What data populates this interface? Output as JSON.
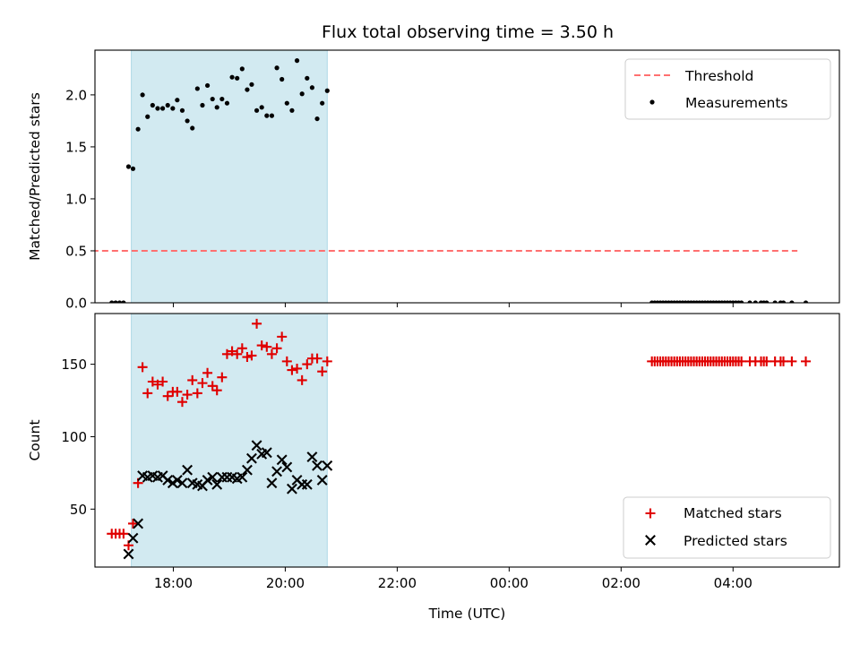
{
  "title": "Flux total observing time = 3.50 h",
  "colors": {
    "threshold": "#ff7070",
    "measurements": "#000000",
    "matched": "#e00000",
    "predicted": "#000000",
    "shade": "#add8e6"
  },
  "chart_data": [
    {
      "type": "scatter",
      "panel": "top",
      "ylabel": "Matched/Predicted stars",
      "xlim": [
        16.6,
        29.9
      ],
      "ylim": [
        0,
        2.43
      ],
      "x_unit": "hours since 00:00 UTC of first day",
      "xticks": [
        18,
        20,
        22,
        24,
        26,
        28
      ],
      "yticks": [
        0.0,
        0.5,
        1.0,
        1.5,
        2.0
      ],
      "ytick_labels": [
        "0.0",
        "0.5",
        "1.0",
        "1.5",
        "2.0"
      ],
      "shaded_span": [
        17.25,
        20.75
      ],
      "legend": {
        "placement": "top-right",
        "entries": [
          "Threshold",
          "Measurements"
        ]
      },
      "threshold": {
        "name": "Threshold",
        "y": 0.5,
        "x": [
          16.55,
          29.15
        ]
      },
      "measurements": {
        "name": "Measurements",
        "x": [
          16.9,
          16.97,
          17.04,
          17.11,
          17.2,
          17.28,
          17.37,
          17.45,
          17.54,
          17.63,
          17.72,
          17.81,
          17.9,
          17.99,
          18.07,
          18.16,
          18.25,
          18.34,
          18.43,
          18.52,
          18.61,
          18.7,
          18.78,
          18.87,
          18.96,
          19.05,
          19.14,
          19.23,
          19.32,
          19.4,
          19.49,
          19.58,
          19.67,
          19.76,
          19.85,
          19.94,
          20.03,
          20.12,
          20.21,
          20.3,
          20.39,
          20.48,
          20.57,
          20.66,
          20.75,
          26.55,
          26.6,
          26.65,
          26.7,
          26.75,
          26.8,
          26.85,
          26.9,
          26.95,
          27.0,
          27.05,
          27.1,
          27.15,
          27.2,
          27.25,
          27.3,
          27.35,
          27.4,
          27.45,
          27.5,
          27.55,
          27.6,
          27.65,
          27.7,
          27.75,
          27.8,
          27.85,
          27.9,
          27.95,
          28.0,
          28.05,
          28.1,
          28.15,
          28.3,
          28.4,
          28.5,
          28.55,
          28.6,
          28.75,
          28.85,
          28.9,
          29.05,
          29.3
        ],
        "y": [
          0.0,
          0.0,
          0.0,
          0.0,
          1.31,
          1.29,
          1.67,
          2.0,
          1.79,
          1.9,
          1.87,
          1.87,
          1.9,
          1.87,
          1.95,
          1.85,
          1.75,
          1.68,
          2.06,
          1.9,
          2.09,
          1.96,
          1.88,
          1.96,
          1.92,
          2.17,
          2.16,
          2.25,
          2.05,
          2.1,
          1.85,
          1.88,
          1.8,
          1.8,
          2.26,
          2.15,
          1.92,
          1.85,
          2.33,
          2.01,
          2.16,
          2.07,
          1.77,
          1.92,
          2.04,
          0.0,
          0.0,
          0.0,
          0.0,
          0.0,
          0.0,
          0.0,
          0.0,
          0.0,
          0.0,
          0.0,
          0.0,
          0.0,
          0.0,
          0.0,
          0.0,
          0.0,
          0.0,
          0.0,
          0.0,
          0.0,
          0.0,
          0.0,
          0.0,
          0.0,
          0.0,
          0.0,
          0.0,
          0.0,
          0.0,
          0.0,
          0.0,
          0.0,
          0.0,
          0.0,
          0.0,
          0.0,
          0.0,
          0.0,
          0.0,
          0.0,
          0.0,
          0.0
        ]
      }
    },
    {
      "type": "scatter",
      "panel": "bottom",
      "xlabel": "Time (UTC)",
      "ylabel": "Count",
      "xlim": [
        16.6,
        29.9
      ],
      "ylim": [
        10,
        185
      ],
      "x_unit": "hours since 00:00 UTC of first day",
      "xticks": [
        18,
        20,
        22,
        24,
        26,
        28
      ],
      "xtick_labels": [
        "18:00",
        "20:00",
        "22:00",
        "00:00",
        "02:00",
        "04:00"
      ],
      "yticks": [
        50,
        100,
        150
      ],
      "ytick_labels": [
        "50",
        "100",
        "150"
      ],
      "shaded_span": [
        17.25,
        20.75
      ],
      "legend": {
        "placement": "bottom-right",
        "entries": [
          "Matched stars",
          "Predicted stars"
        ]
      },
      "series": [
        {
          "name": "Matched stars",
          "marker": "+",
          "x": [
            16.9,
            16.97,
            17.04,
            17.11,
            17.2,
            17.28,
            17.37,
            17.45,
            17.54,
            17.63,
            17.72,
            17.81,
            17.9,
            17.99,
            18.07,
            18.16,
            18.25,
            18.34,
            18.43,
            18.52,
            18.61,
            18.7,
            18.78,
            18.87,
            18.96,
            19.05,
            19.14,
            19.23,
            19.32,
            19.4,
            19.49,
            19.58,
            19.67,
            19.76,
            19.85,
            19.94,
            20.03,
            20.12,
            20.21,
            20.3,
            20.39,
            20.48,
            20.57,
            20.66,
            20.75,
            26.55,
            26.6,
            26.65,
            26.7,
            26.75,
            26.8,
            26.85,
            26.9,
            26.95,
            27.0,
            27.05,
            27.1,
            27.15,
            27.2,
            27.25,
            27.3,
            27.35,
            27.4,
            27.45,
            27.5,
            27.55,
            27.6,
            27.65,
            27.7,
            27.75,
            27.8,
            27.85,
            27.9,
            27.95,
            28.0,
            28.05,
            28.1,
            28.15,
            28.3,
            28.4,
            28.5,
            28.55,
            28.6,
            28.75,
            28.85,
            28.9,
            29.05,
            29.3
          ],
          "y": [
            33,
            33,
            33,
            33,
            25,
            40,
            68,
            148,
            130,
            138,
            136,
            138,
            128,
            131,
            131,
            124,
            129,
            139,
            130,
            137,
            144,
            135,
            132,
            141,
            157,
            159,
            157,
            161,
            155,
            156,
            178,
            163,
            162,
            157,
            161,
            169,
            152,
            146,
            147,
            139,
            150,
            154,
            154,
            145,
            152,
            152,
            152,
            152,
            152,
            152,
            152,
            152,
            152,
            152,
            152,
            152,
            152,
            152,
            152,
            152,
            152,
            152,
            152,
            152,
            152,
            152,
            152,
            152,
            152,
            152,
            152,
            152,
            152,
            152,
            152,
            152,
            152,
            152,
            152,
            152,
            152,
            152,
            152,
            152,
            152,
            152,
            152,
            152
          ]
        },
        {
          "name": "Predicted stars",
          "marker": "x",
          "x": [
            17.2,
            17.28,
            17.37,
            17.45,
            17.54,
            17.63,
            17.72,
            17.81,
            17.9,
            17.99,
            18.07,
            18.16,
            18.25,
            18.34,
            18.43,
            18.52,
            18.61,
            18.7,
            18.78,
            18.87,
            18.96,
            19.05,
            19.14,
            19.23,
            19.32,
            19.4,
            19.49,
            19.58,
            19.67,
            19.76,
            19.85,
            19.94,
            20.03,
            20.12,
            20.21,
            20.3,
            20.39,
            20.48,
            20.57,
            20.66,
            20.75
          ],
          "y": [
            19,
            30,
            40,
            73,
            72,
            73,
            72,
            73,
            70,
            68,
            70,
            68,
            77,
            68,
            67,
            66,
            70,
            72,
            67,
            72,
            72,
            72,
            71,
            72,
            77,
            85,
            94,
            88,
            89,
            68,
            76,
            84,
            79,
            64,
            70,
            67,
            67,
            86,
            80,
            70,
            80
          ]
        }
      ]
    }
  ]
}
